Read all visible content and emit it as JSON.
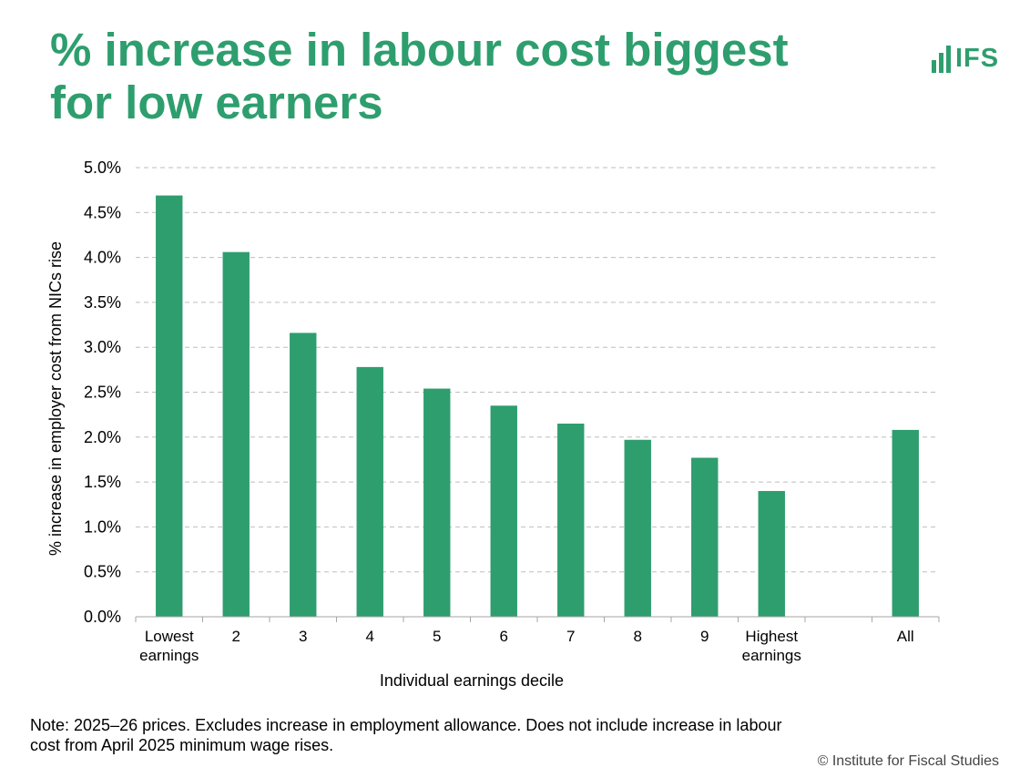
{
  "title_lines": [
    "% increase in labour cost biggest",
    "for low earners"
  ],
  "logo": {
    "text": "IFS",
    "icon": "bar-chart-icon",
    "color": "#2E9E6E"
  },
  "note": "Note: 2025–26 prices. Excludes increase in employment allowance. Does not include increase in labour cost from April 2025 minimum wage rises.",
  "copyright": "© Institute for Fiscal Studies",
  "chart_data": {
    "type": "bar",
    "categories": [
      [
        "Lowest",
        "earnings"
      ],
      [
        "2"
      ],
      [
        "3"
      ],
      [
        "4"
      ],
      [
        "5"
      ],
      [
        "6"
      ],
      [
        "7"
      ],
      [
        "8"
      ],
      [
        "9"
      ],
      [
        "Highest",
        "earnings"
      ],
      [
        ""
      ],
      [
        "All"
      ]
    ],
    "values": [
      4.69,
      4.06,
      3.16,
      2.78,
      2.54,
      2.35,
      2.15,
      1.97,
      1.77,
      1.4,
      null,
      2.08
    ],
    "xlabel": "Individual earnings decile",
    "ylabel": "% increase in employer cost from NICs rise",
    "ylim": [
      0,
      5
    ],
    "yticks": [
      "0.0%",
      "0.5%",
      "1.0%",
      "1.5%",
      "2.0%",
      "2.5%",
      "3.0%",
      "3.5%",
      "4.0%",
      "4.5%",
      "5.0%"
    ],
    "bar_color": "#2E9E6E",
    "grid": true,
    "grid_style": "dashed",
    "legend": false
  }
}
